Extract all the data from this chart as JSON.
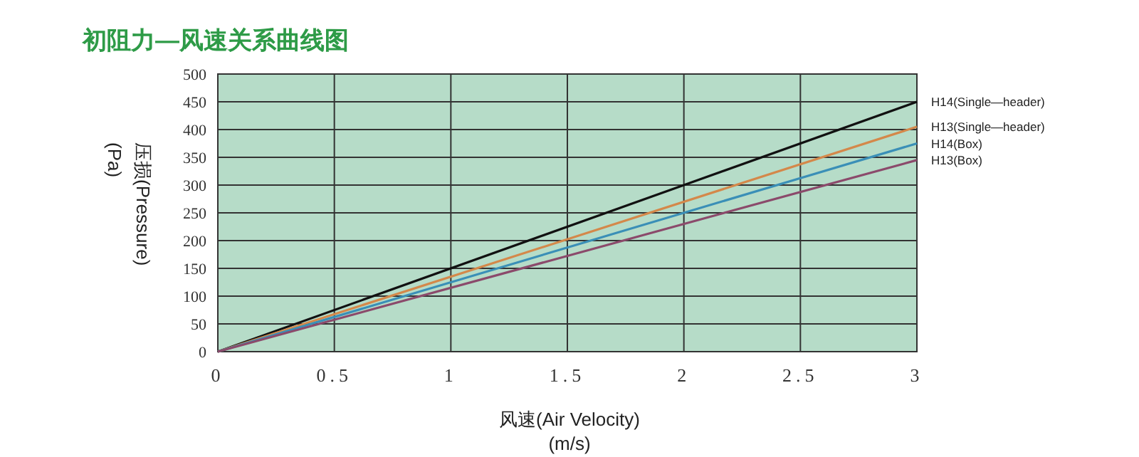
{
  "chart_data": {
    "type": "line",
    "title": "初阻力—风速关系曲线图",
    "xlabel": "风速(Air Velocity)\n(m/s)",
    "ylabel": "压损(Pressure)\n(Pa)",
    "x": [
      0,
      3
    ],
    "xlim": [
      0,
      3
    ],
    "xticks": [
      0,
      0.5,
      1,
      1.5,
      2,
      2.5,
      3
    ],
    "ylim": [
      0,
      500
    ],
    "yticks": [
      0,
      50,
      100,
      150,
      200,
      250,
      300,
      350,
      400,
      450,
      500
    ],
    "grid": true,
    "legend": "right",
    "marker": "none",
    "line_style": "solid",
    "series": [
      {
        "name": "H14(Single—header)",
        "color": "#111111",
        "values": [
          0,
          450
        ]
      },
      {
        "name": "H13(Single—header)",
        "color": "#d4884a",
        "values": [
          0,
          405
        ]
      },
      {
        "name": "H14(Box)",
        "color": "#3a8fb7",
        "values": [
          0,
          375
        ]
      },
      {
        "name": "H13(Box)",
        "color": "#8b4a6b",
        "values": [
          0,
          345
        ]
      }
    ]
  }
}
